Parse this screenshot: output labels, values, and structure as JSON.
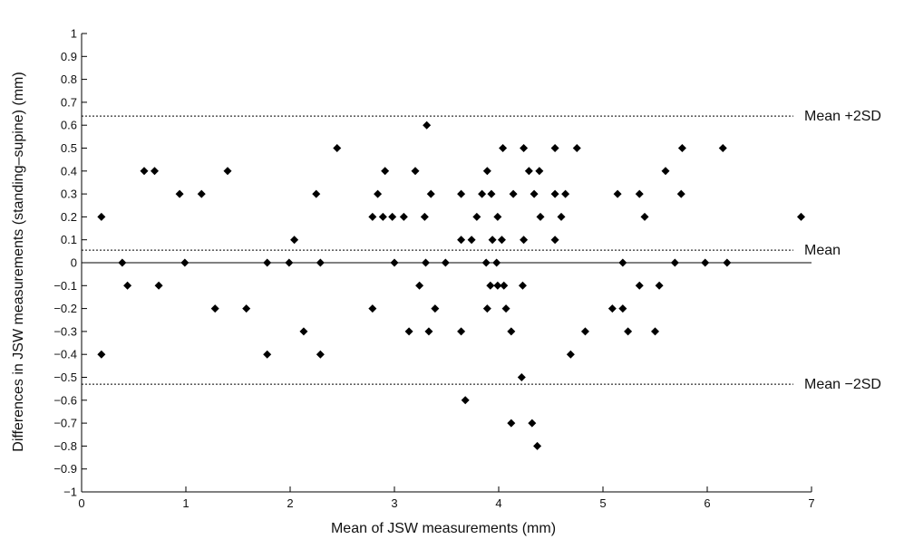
{
  "chart_data": {
    "type": "scatter",
    "title": "",
    "xlabel": "Mean of JSW measurements (mm)",
    "ylabel": "Differences in JSW measurements (standing–supine) (mm)",
    "xlim": [
      0,
      7
    ],
    "ylim": [
      -1,
      1
    ],
    "x_ticks": [
      0,
      1,
      2,
      3,
      4,
      5,
      6,
      7
    ],
    "x_tick_labels": [
      "0",
      "1",
      "2",
      "3",
      "4",
      "5",
      "6",
      "7"
    ],
    "y_ticks": [
      -1,
      -0.9,
      -0.8,
      -0.7,
      -0.6,
      -0.5,
      -0.4,
      -0.3,
      -0.2,
      -0.1,
      0,
      0.1,
      0.2,
      0.3,
      0.4,
      0.5,
      0.6,
      0.7,
      0.8,
      0.9,
      1
    ],
    "y_tick_labels": [
      "−1",
      "−0.9",
      "−0.8",
      "−0.7",
      "−0.6",
      "−0.5",
      "−0.4",
      "−0.3",
      "−0.2",
      "−0.1",
      "0",
      "0.1",
      "0.2",
      "0.3",
      "0.4",
      "0.5",
      "0.6",
      "0.7",
      "0.8",
      "0.9",
      "1"
    ],
    "grid": false,
    "marker": "diamond",
    "marker_color": "#000000",
    "zero_line": 0,
    "reference_lines": [
      {
        "label": "Mean +2SD",
        "y": 0.64,
        "style": "dotted"
      },
      {
        "label": "Mean",
        "y": 0.055,
        "style": "dotted"
      },
      {
        "label": "Mean −2SD",
        "y": -0.53,
        "style": "dotted"
      }
    ],
    "points": [
      [
        0.19,
        0.2
      ],
      [
        0.19,
        -0.4
      ],
      [
        0.39,
        0.0
      ],
      [
        0.44,
        -0.1
      ],
      [
        0.6,
        0.4
      ],
      [
        0.7,
        0.4
      ],
      [
        0.74,
        -0.1
      ],
      [
        0.94,
        0.3
      ],
      [
        0.99,
        0.0
      ],
      [
        1.15,
        0.3
      ],
      [
        1.28,
        -0.2
      ],
      [
        1.4,
        0.4
      ],
      [
        1.58,
        -0.2
      ],
      [
        1.78,
        0.0
      ],
      [
        1.78,
        -0.4
      ],
      [
        1.99,
        0.0
      ],
      [
        2.04,
        0.1
      ],
      [
        2.13,
        -0.3
      ],
      [
        2.25,
        0.3
      ],
      [
        2.29,
        0.0
      ],
      [
        2.29,
        -0.4
      ],
      [
        2.45,
        0.5
      ],
      [
        2.79,
        0.2
      ],
      [
        2.79,
        -0.2
      ],
      [
        2.84,
        0.3
      ],
      [
        2.89,
        0.2
      ],
      [
        2.91,
        0.4
      ],
      [
        2.98,
        0.2
      ],
      [
        3.0,
        0.0
      ],
      [
        3.09,
        0.2
      ],
      [
        3.14,
        -0.3
      ],
      [
        3.2,
        0.4
      ],
      [
        3.24,
        -0.1
      ],
      [
        3.29,
        0.2
      ],
      [
        3.3,
        0.0
      ],
      [
        3.31,
        0.6
      ],
      [
        3.33,
        -0.3
      ],
      [
        3.35,
        0.3
      ],
      [
        3.39,
        -0.2
      ],
      [
        3.49,
        0.0
      ],
      [
        3.64,
        0.3
      ],
      [
        3.64,
        0.1
      ],
      [
        3.64,
        -0.3
      ],
      [
        3.68,
        -0.6
      ],
      [
        3.74,
        0.1
      ],
      [
        3.79,
        0.2
      ],
      [
        3.84,
        0.3
      ],
      [
        3.88,
        0.0
      ],
      [
        3.89,
        0.4
      ],
      [
        3.89,
        -0.2
      ],
      [
        3.92,
        -0.1
      ],
      [
        3.93,
        0.3
      ],
      [
        3.94,
        0.1
      ],
      [
        3.98,
        0.0
      ],
      [
        3.99,
        0.2
      ],
      [
        3.99,
        -0.1
      ],
      [
        4.03,
        0.1
      ],
      [
        4.04,
        0.5
      ],
      [
        4.05,
        -0.1
      ],
      [
        4.07,
        -0.2
      ],
      [
        4.12,
        -0.3
      ],
      [
        4.12,
        -0.7
      ],
      [
        4.14,
        0.3
      ],
      [
        4.22,
        -0.5
      ],
      [
        4.23,
        -0.1
      ],
      [
        4.24,
        0.1
      ],
      [
        4.24,
        0.5
      ],
      [
        4.29,
        0.4
      ],
      [
        4.32,
        -0.7
      ],
      [
        4.34,
        0.3
      ],
      [
        4.37,
        -0.8
      ],
      [
        4.39,
        0.4
      ],
      [
        4.4,
        0.2
      ],
      [
        4.54,
        0.5
      ],
      [
        4.54,
        0.1
      ],
      [
        4.54,
        0.3
      ],
      [
        4.6,
        0.2
      ],
      [
        4.64,
        0.3
      ],
      [
        4.69,
        -0.4
      ],
      [
        4.75,
        0.5
      ],
      [
        4.83,
        -0.3
      ],
      [
        5.09,
        -0.2
      ],
      [
        5.14,
        0.3
      ],
      [
        5.19,
        -0.2
      ],
      [
        5.19,
        0.0
      ],
      [
        5.24,
        -0.3
      ],
      [
        5.35,
        0.3
      ],
      [
        5.35,
        -0.1
      ],
      [
        5.4,
        0.2
      ],
      [
        5.5,
        -0.3
      ],
      [
        5.54,
        -0.1
      ],
      [
        5.6,
        0.4
      ],
      [
        5.69,
        0.0
      ],
      [
        5.75,
        0.3
      ],
      [
        5.76,
        0.5
      ],
      [
        5.98,
        0.0
      ],
      [
        6.15,
        0.5
      ],
      [
        6.19,
        0.0
      ],
      [
        6.9,
        0.2
      ]
    ]
  }
}
